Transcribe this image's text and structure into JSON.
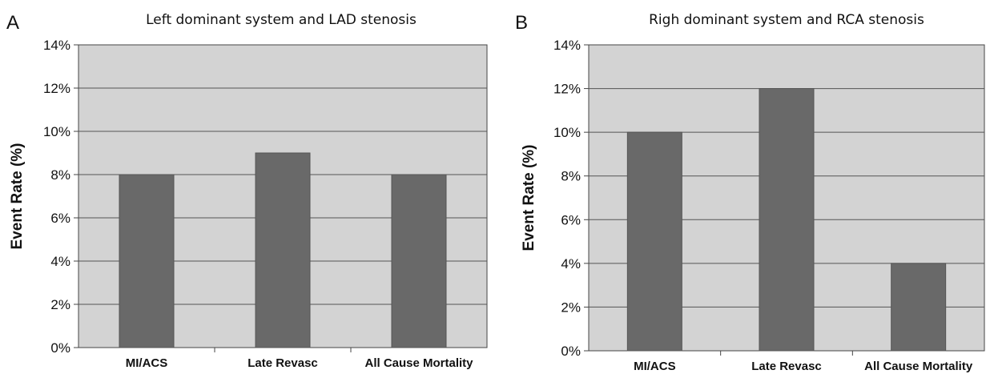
{
  "chart_data": [
    {
      "panel": "A",
      "type": "bar",
      "title": "Left dominant system and LAD stenosis",
      "xlabel": "",
      "ylabel": "Event Rate (%)",
      "ylim": [
        0,
        14
      ],
      "yticks": [
        "0%",
        "2%",
        "4%",
        "6%",
        "8%",
        "10%",
        "12%",
        "14%"
      ],
      "categories": [
        "MI/ACS",
        "Late Revasc",
        "All Cause Mortality"
      ],
      "values": [
        8,
        9,
        8
      ],
      "grid": true,
      "colors": {
        "plot_bg": "#d3d3d3",
        "bar": "#696969",
        "grid": "#555555"
      }
    },
    {
      "panel": "B",
      "type": "bar",
      "title": "Righ dominant system and RCA stenosis",
      "xlabel": "",
      "ylabel": "Event Rate (%)",
      "ylim": [
        0,
        14
      ],
      "yticks": [
        "0%",
        "2%",
        "4%",
        "6%",
        "8%",
        "10%",
        "12%",
        "14%"
      ],
      "categories": [
        "MI/ACS",
        "Late Revasc",
        "All Cause Mortality"
      ],
      "values": [
        10,
        12,
        4
      ],
      "grid": true,
      "colors": {
        "plot_bg": "#d3d3d3",
        "bar": "#696969",
        "grid": "#555555"
      }
    }
  ]
}
